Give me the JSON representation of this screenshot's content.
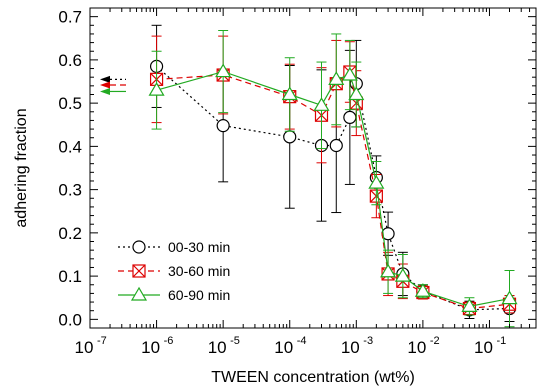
{
  "chart_data": {
    "type": "scatter",
    "xlabel": "TWEEN concentration (wt%)",
    "ylabel": "adhering fraction",
    "xscale": "log",
    "xlim": [
      1e-07,
      0.5
    ],
    "ylim": [
      -0.02,
      0.72
    ],
    "xticks": [
      {
        "value": 1e-07,
        "base": "10",
        "exp": "-7"
      },
      {
        "value": 1e-06,
        "base": "10",
        "exp": "-6"
      },
      {
        "value": 1e-05,
        "base": "10",
        "exp": "-5"
      },
      {
        "value": 0.0001,
        "base": "10",
        "exp": "-4"
      },
      {
        "value": 0.001,
        "base": "10",
        "exp": "-3"
      },
      {
        "value": 0.01,
        "base": "10",
        "exp": "-2"
      },
      {
        "value": 0.1,
        "base": "10",
        "exp": "-1"
      }
    ],
    "yticks": [
      {
        "value": 0.0,
        "label": "0.0"
      },
      {
        "value": 0.1,
        "label": "0.1"
      },
      {
        "value": 0.2,
        "label": "0.2"
      },
      {
        "value": 0.3,
        "label": "0.3"
      },
      {
        "value": 0.4,
        "label": "0.4"
      },
      {
        "value": 0.5,
        "label": "0.5"
      },
      {
        "value": 0.6,
        "label": "0.6"
      },
      {
        "value": 0.7,
        "label": "0.7"
      }
    ],
    "legend_position": "bottom-left",
    "series": [
      {
        "name": "00-30 min",
        "color": "#000000",
        "marker": "circle",
        "line": "dotted",
        "control_value": 0.555,
        "x": [
          1e-06,
          1e-05,
          0.0001,
          0.0003,
          0.0005,
          0.0008,
          0.001,
          0.002,
          0.003,
          0.005,
          0.01,
          0.05,
          0.2
        ],
        "y": [
          0.585,
          0.448,
          0.422,
          0.402,
          0.402,
          0.467,
          0.545,
          0.328,
          0.198,
          0.105,
          0.065,
          0.022,
          0.025
        ],
        "err": [
          0.095,
          0.13,
          0.165,
          0.175,
          0.155,
          0.155,
          0.1,
          0.05,
          0.05,
          0.05,
          0.015,
          0.02,
          0.03
        ]
      },
      {
        "name": "30-60 min",
        "color": "#dd0000",
        "marker": "square-x",
        "line": "dashed",
        "control_value": 0.542,
        "x": [
          1e-06,
          1e-05,
          0.0001,
          0.0003,
          0.0005,
          0.0008,
          0.001,
          0.002,
          0.003,
          0.005,
          0.01,
          0.05,
          0.2
        ],
        "y": [
          0.555,
          0.565,
          0.515,
          0.472,
          0.545,
          0.572,
          0.5,
          0.285,
          0.105,
          0.088,
          0.062,
          0.025,
          0.035
        ],
        "err": [
          0.1,
          0.09,
          0.075,
          0.11,
          0.1,
          0.07,
          0.075,
          0.05,
          0.05,
          0.04,
          0.015,
          0.015,
          0.02
        ]
      },
      {
        "name": "60-90 min",
        "color": "#22aa22",
        "marker": "triangle",
        "line": "solid",
        "control_value": 0.527,
        "x": [
          1e-06,
          1e-05,
          0.0001,
          0.0003,
          0.0005,
          0.0008,
          0.001,
          0.002,
          0.003,
          0.005,
          0.01,
          0.05,
          0.2
        ],
        "y": [
          0.53,
          0.573,
          0.52,
          0.495,
          0.555,
          0.565,
          0.52,
          0.315,
          0.11,
          0.1,
          0.065,
          0.03,
          0.048
        ],
        "err": [
          0.09,
          0.095,
          0.085,
          0.1,
          0.105,
          0.08,
          0.075,
          0.05,
          0.05,
          0.05,
          0.015,
          0.02,
          0.065
        ]
      }
    ]
  }
}
